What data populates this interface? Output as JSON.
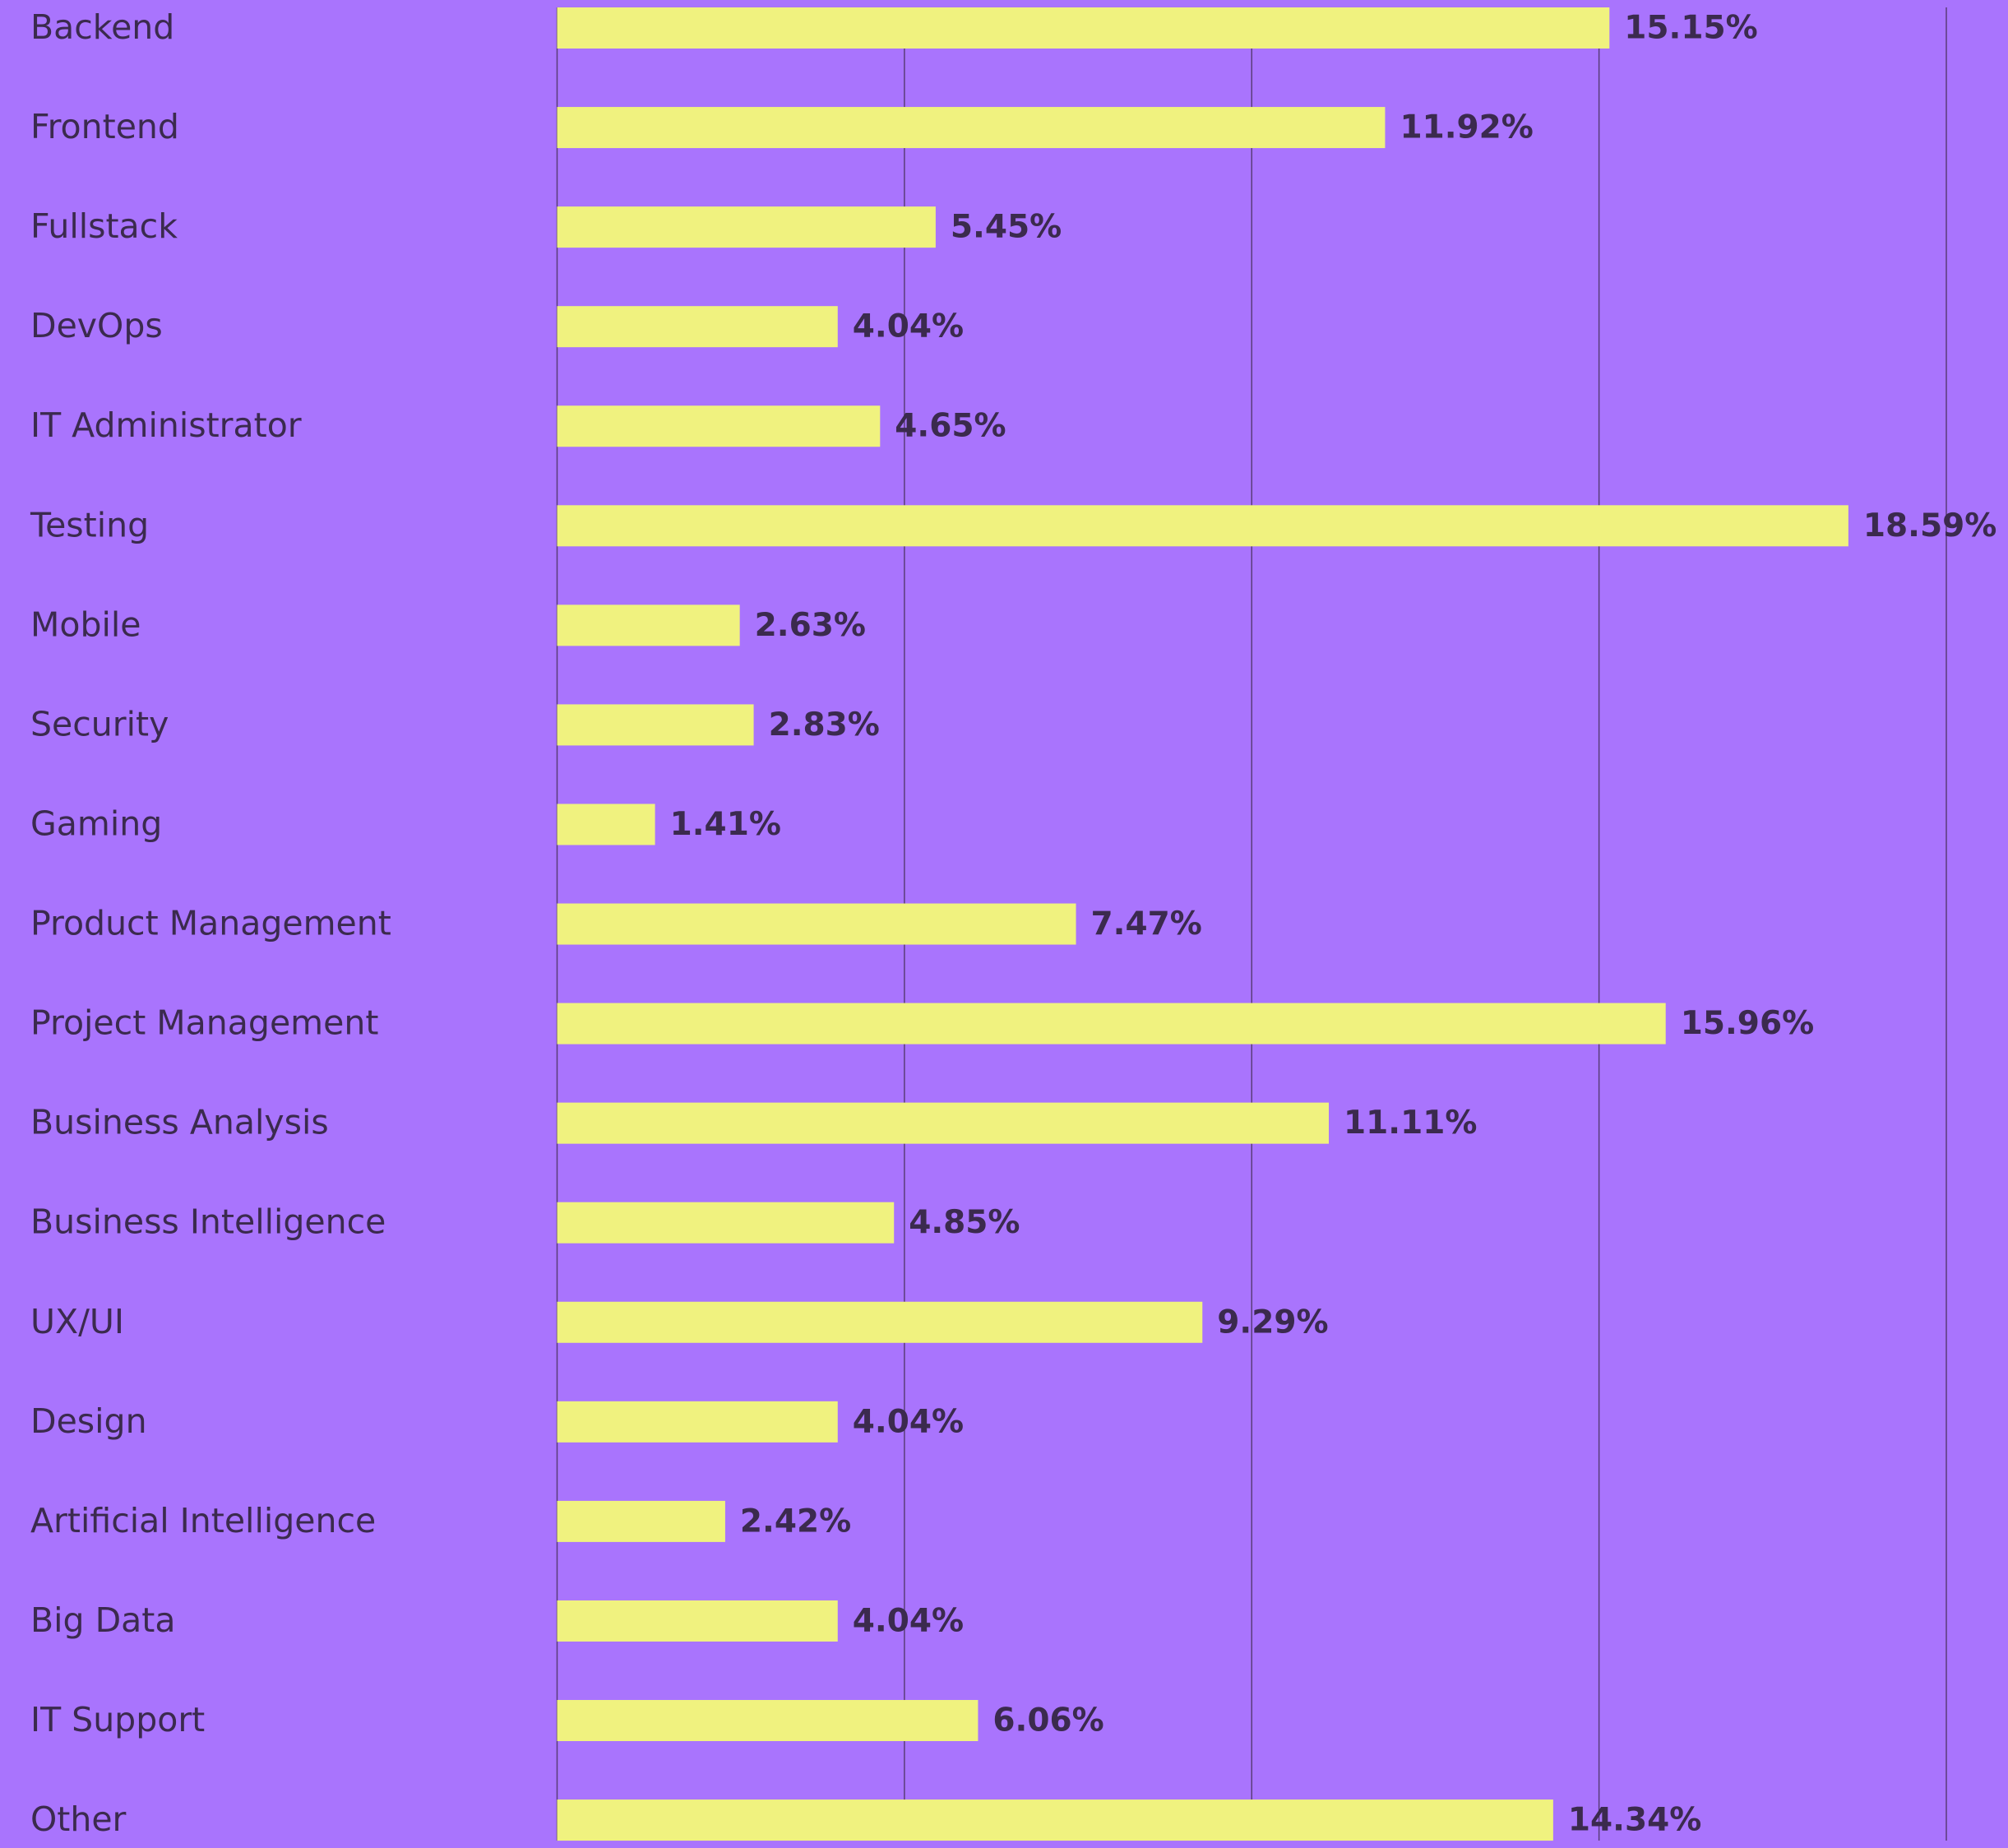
{
  "chart_data": {
    "type": "bar",
    "orientation": "horizontal",
    "categories": [
      "Backend",
      "Frontend",
      "Fullstack",
      "DevOps",
      "IT Administrator",
      "Testing",
      "Mobile",
      "Security",
      "Gaming",
      "Product Management",
      "Project Management",
      "Business Analysis",
      "Business Intelligence",
      "UX/UI",
      "Design",
      "Artificial Intelligence",
      "Big Data",
      "IT Support",
      "Other"
    ],
    "values": [
      15.15,
      11.92,
      5.45,
      4.04,
      4.65,
      18.59,
      2.63,
      2.83,
      1.41,
      7.47,
      15.96,
      11.11,
      4.85,
      9.29,
      4.04,
      2.42,
      4.04,
      6.06,
      14.34
    ],
    "value_labels": [
      "15.15%",
      "11.92%",
      "5.45%",
      "4.04%",
      "4.65%",
      "18.59%",
      "2.63%",
      "2.83%",
      "1.41%",
      "7.47%",
      "15.96%",
      "11.11%",
      "4.85%",
      "9.29%",
      "4.04%",
      "2.42%",
      "4.04%",
      "6.06%",
      "14.34%"
    ],
    "color": "#f0f27f",
    "xlim": [
      0,
      20
    ],
    "xticks": [
      0,
      5,
      10,
      15,
      20
    ],
    "grid": true
  }
}
